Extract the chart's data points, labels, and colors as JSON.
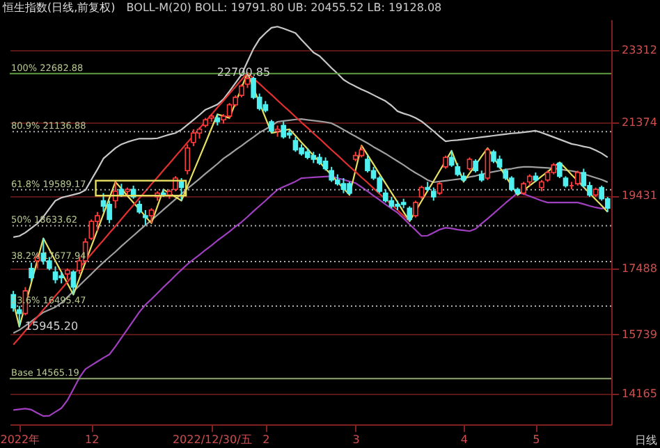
{
  "chart_data": {
    "type": "candlestick",
    "title": "恒生指数(日线,前复权)",
    "subtitle": "BOLL-M(20) BOLL: 19791.80 UB: 20455.52 LB: 19128.08",
    "categories": [
      null,
      "2022年",
      null,
      null,
      null,
      null,
      null,
      null,
      null,
      null,
      null,
      null,
      null,
      "12",
      null,
      null,
      null,
      null,
      null,
      null,
      null,
      null,
      null,
      null,
      null,
      null,
      null,
      null,
      null,
      null,
      null,
      null,
      null,
      "2022/12/30/五",
      null,
      null,
      null,
      null,
      null,
      null,
      null,
      null,
      "2",
      null,
      null,
      null,
      null,
      null,
      null,
      null,
      null,
      null,
      null,
      null,
      null,
      null,
      null,
      "3",
      null,
      null,
      null,
      null,
      null,
      null,
      null,
      null,
      null,
      null,
      null,
      null,
      null,
      null,
      null,
      null,
      null,
      "4",
      null,
      null,
      null,
      null,
      null,
      null,
      null,
      null,
      null,
      null,
      null,
      "5",
      null,
      null,
      null,
      null,
      null,
      null,
      null,
      null,
      null,
      null,
      null,
      null
    ],
    "ohlc": [
      [
        16800,
        16900,
        16350,
        16450
      ],
      [
        16400,
        16500,
        15945.2,
        16300
      ],
      [
        16300,
        17000,
        16250,
        16900
      ],
      [
        17500,
        17650,
        17150,
        17250
      ],
      [
        17700,
        17900,
        17500,
        17800
      ],
      [
        17900,
        18300,
        17600,
        17700
      ],
      [
        17700,
        17800,
        17450,
        17500
      ],
      [
        17400,
        17550,
        17100,
        17200
      ],
      [
        17300,
        17400,
        17100,
        17250
      ],
      [
        17350,
        17500,
        17200,
        17450
      ],
      [
        17400,
        17450,
        16800,
        17000
      ],
      [
        17450,
        17800,
        17350,
        17700
      ],
      [
        17700,
        18300,
        17650,
        18200
      ],
      [
        18300,
        18800,
        18250,
        18750
      ],
      [
        18750,
        19000,
        18500,
        18900
      ],
      [
        19300,
        19500,
        19000,
        19150
      ],
      [
        19200,
        19300,
        18700,
        18800
      ],
      [
        19300,
        19800,
        19100,
        19550
      ],
      [
        19600,
        19750,
        19400,
        19450
      ],
      [
        19550,
        19650,
        19450,
        19600
      ],
      [
        19600,
        19700,
        19350,
        19400
      ],
      [
        19200,
        19300,
        18950,
        19000
      ],
      [
        18900,
        19050,
        18650,
        18850
      ],
      [
        18900,
        19100,
        18700,
        19050
      ],
      [
        19400,
        19550,
        19300,
        19500
      ],
      [
        19500,
        19600,
        19400,
        19450
      ],
      [
        19450,
        19600,
        19350,
        19550
      ],
      [
        19600,
        19950,
        19550,
        19900
      ],
      [
        19800,
        19900,
        19300,
        19650
      ],
      [
        20100,
        20800,
        20000,
        20700
      ],
      [
        20850,
        21200,
        20750,
        21100
      ],
      [
        21100,
        21250,
        20950,
        21200
      ],
      [
        21300,
        21500,
        21250,
        21450
      ],
      [
        21500,
        21600,
        21400,
        21550
      ],
      [
        21500,
        21600,
        21300,
        21400
      ],
      [
        21450,
        21600,
        21350,
        21550
      ],
      [
        21550,
        21900,
        21500,
        21850
      ],
      [
        21850,
        22100,
        21800,
        22050
      ],
      [
        22100,
        22400,
        22050,
        22350
      ],
      [
        22400,
        22700.85,
        22300,
        22550
      ],
      [
        22550,
        22600,
        22000,
        22050
      ],
      [
        22050,
        22150,
        21700,
        21750
      ],
      [
        21850,
        21950,
        21650,
        21700
      ],
      [
        21400,
        21450,
        21100,
        21150
      ],
      [
        21150,
        21300,
        21000,
        21200
      ],
      [
        21300,
        21400,
        20950,
        21000
      ],
      [
        21100,
        21200,
        20950,
        21050
      ],
      [
        20900,
        21000,
        20600,
        20650
      ],
      [
        20700,
        20800,
        20500,
        20550
      ],
      [
        20600,
        20700,
        20400,
        20450
      ],
      [
        20500,
        20600,
        20300,
        20400
      ],
      [
        20450,
        20550,
        20250,
        20300
      ],
      [
        20350,
        20450,
        20100,
        20150
      ],
      [
        20100,
        20200,
        19800,
        19850
      ],
      [
        19850,
        20000,
        19700,
        19750
      ],
      [
        19750,
        19900,
        19500,
        19600
      ],
      [
        19750,
        19800,
        19450,
        19500
      ],
      [
        20400,
        20600,
        20350,
        20500
      ],
      [
        20500,
        20770,
        20450,
        20650
      ],
      [
        20400,
        20500,
        20050,
        20100
      ],
      [
        20100,
        20200,
        19850,
        19900
      ],
      [
        19900,
        19950,
        19500,
        19550
      ],
      [
        19500,
        19600,
        19250,
        19300
      ],
      [
        19300,
        19400,
        19100,
        19150
      ],
      [
        19200,
        19300,
        19050,
        19150
      ],
      [
        19250,
        19350,
        19100,
        19200
      ],
      [
        19100,
        19150,
        18750,
        18800
      ],
      [
        18900,
        19300,
        18850,
        19250
      ],
      [
        19400,
        19700,
        19350,
        19650
      ],
      [
        19650,
        19800,
        19550,
        19600
      ],
      [
        19550,
        19650,
        19300,
        19400
      ],
      [
        19500,
        19800,
        19450,
        19750
      ],
      [
        20200,
        20500,
        20150,
        20450
      ],
      [
        20450,
        20630,
        20200,
        20250
      ],
      [
        20200,
        20300,
        19950,
        20000
      ],
      [
        19950,
        20050,
        19800,
        19850
      ],
      [
        20150,
        20450,
        20100,
        20400
      ],
      [
        20350,
        20400,
        20050,
        20100
      ],
      [
        20000,
        20100,
        19800,
        19850
      ],
      [
        19900,
        20700,
        19850,
        20650
      ],
      [
        20600,
        20650,
        20300,
        20350
      ],
      [
        20400,
        20500,
        20150,
        20200
      ],
      [
        20100,
        20150,
        19850,
        19900
      ],
      [
        19900,
        19950,
        19550,
        19600
      ],
      [
        19600,
        19650,
        19450,
        19500
      ],
      [
        19500,
        19800,
        19450,
        19750
      ],
      [
        19800,
        20000,
        19700,
        19950
      ],
      [
        19950,
        20050,
        19800,
        19850
      ],
      [
        19650,
        19850,
        19550,
        19800
      ],
      [
        19850,
        20100,
        19800,
        20050
      ],
      [
        20050,
        20300,
        20000,
        20250
      ],
      [
        20300,
        20320,
        19900,
        19950
      ],
      [
        19900,
        19950,
        19650,
        19700
      ],
      [
        19700,
        19800,
        19600,
        19700
      ],
      [
        19750,
        20100,
        19700,
        20050
      ],
      [
        20050,
        20150,
        19650,
        19700
      ],
      [
        19700,
        19800,
        19400,
        19450
      ],
      [
        19450,
        19650,
        19400,
        19600
      ],
      [
        19650,
        19700,
        19300,
        19350
      ],
      [
        19350,
        19400,
        19000,
        19100
      ]
    ],
    "series": [
      {
        "type": "line",
        "color": "#c8c8c8",
        "values": [
          18330,
          18360,
          18450,
          18570,
          18690,
          18870,
          19090,
          19300,
          19380,
          19420,
          19460,
          19500,
          19580,
          19860,
          20130,
          20420,
          20560,
          20700,
          20800,
          20860,
          20910,
          20950,
          20950,
          20950,
          20960,
          21010,
          21060,
          21100,
          21190,
          21320,
          21450,
          21580,
          21720,
          21790,
          21860,
          22000,
          22210,
          22430,
          22650,
          23000,
          23340,
          23600,
          23760,
          23900,
          23930,
          23880,
          23820,
          23760,
          23580,
          23410,
          23240,
          23150,
          22990,
          22830,
          22680,
          22520,
          22420,
          22340,
          22260,
          22190,
          22110,
          22030,
          21950,
          21830,
          21680,
          21620,
          21570,
          21500,
          21410,
          21280,
          21150,
          21010,
          20880,
          20900,
          20910,
          20930,
          20950,
          20970,
          20990,
          21010,
          21030,
          21050,
          21070,
          21090,
          21100,
          21120,
          21140,
          21160,
          21110,
          21050,
          20990,
          20930,
          20870,
          20810,
          20780,
          20740,
          20710,
          20640,
          20560,
          20455
        ]
      },
      {
        "type": "line",
        "color": "#a0a0a0",
        "values": [
          15780,
          15860,
          15970,
          16090,
          16210,
          16330,
          16400,
          16470,
          16580,
          16730,
          16890,
          17040,
          17200,
          17350,
          17510,
          17660,
          17800,
          17940,
          18090,
          18230,
          18370,
          18510,
          18650,
          18780,
          18920,
          19060,
          19200,
          19340,
          19480,
          19620,
          19750,
          19880,
          20020,
          20150,
          20280,
          20420,
          20530,
          20650,
          20760,
          20880,
          20990,
          21110,
          21200,
          21290,
          21400,
          21420,
          21440,
          21460,
          21470,
          21450,
          21430,
          21410,
          21390,
          21360,
          21280,
          21190,
          21100,
          21010,
          20920,
          20830,
          20730,
          20640,
          20550,
          20450,
          20350,
          20250,
          20140,
          20040,
          19950,
          19850,
          19790,
          19810,
          19830,
          19850,
          19870,
          19890,
          19930,
          19960,
          20000,
          20040,
          20070,
          20100,
          20130,
          20150,
          20180,
          20200,
          20200,
          20190,
          20180,
          20170,
          20160,
          20140,
          20110,
          20090,
          20060,
          20010,
          19960,
          19910,
          19860,
          19792
        ]
      },
      {
        "type": "line",
        "color": "#a040c0",
        "values": [
          13730,
          13750,
          13770,
          13740,
          13650,
          13570,
          13580,
          13680,
          13780,
          13990,
          14290,
          14590,
          14820,
          14920,
          15020,
          15120,
          15210,
          15420,
          15650,
          15880,
          16110,
          16340,
          16530,
          16680,
          16840,
          17000,
          17150,
          17310,
          17460,
          17610,
          17740,
          17860,
          17990,
          18110,
          18240,
          18360,
          18480,
          18610,
          18730,
          18870,
          19020,
          19160,
          19300,
          19450,
          19590,
          19670,
          19740,
          19810,
          19900,
          19910,
          19920,
          19930,
          19940,
          19950,
          19900,
          19860,
          19810,
          19770,
          19660,
          19550,
          19430,
          19320,
          19200,
          19090,
          18980,
          18830,
          18670,
          18520,
          18360,
          18370,
          18450,
          18530,
          18580,
          18560,
          18530,
          18510,
          18490,
          18550,
          18690,
          18820,
          18960,
          19100,
          19240,
          19370,
          19510,
          19480,
          19420,
          19360,
          19300,
          19250,
          19250,
          19250,
          19250,
          19250,
          19250,
          19210,
          19160,
          19120,
          19090,
          19128
        ]
      },
      {
        "type": "line",
        "color": "#e8e060",
        "values": [
          16600,
          15945.2,
          16530,
          17120,
          17710,
          18300,
          18000,
          17700,
          17400,
          17100,
          16800,
          17230,
          17660,
          18090,
          18510,
          18940,
          19370,
          19800,
          19620,
          19430,
          19250,
          19070,
          18880,
          18700,
          19150,
          19600,
          19500,
          19400,
          19300,
          19680,
          20070,
          20450,
          20830,
          21220,
          21600,
          21550,
          21500,
          21900,
          22300,
          22700.85,
          22300,
          21900,
          21500,
          21100,
          21130,
          21170,
          21200,
          21030,
          20850,
          20680,
          20500,
          20330,
          20150,
          19980,
          19800,
          19630,
          19450,
          20110,
          20770,
          20520,
          20270,
          20010,
          19760,
          19510,
          19260,
          19000,
          18750,
          19020,
          19290,
          19560,
          19820,
          20090,
          20360,
          20630,
          20220,
          19800,
          20030,
          20250,
          20480,
          20700,
          20450,
          20200,
          19950,
          19700,
          19450,
          19570,
          19700,
          19820,
          19950,
          20070,
          20200,
          20320,
          20160,
          19990,
          19830,
          19660,
          19500,
          19330,
          19170,
          19000
        ]
      },
      {
        "type": "line",
        "color": "#e03030",
        "values": [
          15470,
          15650,
          15840,
          16030,
          16210,
          16400,
          16580,
          16770,
          16950,
          17140,
          17330,
          17510,
          17700,
          17880,
          18070,
          18250,
          18440,
          18620,
          18810,
          19000,
          19180,
          19370,
          19550,
          19740,
          19920,
          20110,
          20290,
          20480,
          20660,
          20850,
          21030,
          21220,
          21410,
          21590,
          21780,
          21960,
          22150,
          22330,
          22520,
          22700.85,
          null,
          null,
          null,
          null,
          null,
          null,
          null,
          null,
          null,
          null,
          null,
          null,
          null,
          null,
          null,
          null,
          null,
          null,
          null,
          null,
          null,
          null,
          null,
          null,
          null,
          null,
          null,
          null,
          null,
          null,
          null,
          null,
          null,
          null,
          null,
          null,
          null,
          null,
          null,
          null,
          null,
          null,
          null,
          null,
          null,
          null,
          null,
          null,
          null,
          null,
          null,
          null,
          null,
          null,
          null,
          null,
          null,
          null,
          null,
          null
        ]
      },
      {
        "type": "line",
        "color": "#e03030",
        "values": [
          null,
          null,
          null,
          null,
          null,
          null,
          null,
          null,
          null,
          null,
          null,
          null,
          null,
          null,
          null,
          null,
          null,
          null,
          null,
          null,
          null,
          null,
          null,
          null,
          null,
          null,
          null,
          null,
          null,
          null,
          null,
          null,
          null,
          null,
          null,
          null,
          null,
          null,
          null,
          22700.85,
          22550,
          22410,
          22260,
          22120,
          21970,
          21820,
          21680,
          21530,
          21380,
          21240,
          21090,
          20950,
          20800,
          20650,
          20510,
          20360,
          20210,
          20070,
          19920,
          19780,
          19630,
          19480,
          19340,
          19190,
          19050,
          18900,
          18750,
          null,
          null,
          null,
          null,
          null,
          null,
          null,
          null,
          null,
          null,
          null,
          null,
          null,
          null,
          null,
          null,
          null,
          null,
          null,
          null,
          null,
          null,
          null,
          null,
          null,
          null,
          null,
          null,
          null,
          null,
          null,
          null,
          null
        ]
      }
    ],
    "ylim": [
      13350,
      24120
    ],
    "yticks": [
      23312,
      21374,
      19431,
      17488,
      15739,
      14165
    ],
    "grid": "y",
    "ref_lines": [
      {
        "axis": "y",
        "value": 22682.88,
        "label": "100% 22682.88",
        "color": "#60a040",
        "line_style": "solid"
      },
      {
        "axis": "y",
        "value": 21136.88,
        "label": "80.9% 21136.88",
        "color": "#b0b0b0",
        "line_style": "dotted"
      },
      {
        "axis": "y",
        "value": 19589.17,
        "label": "61.8% 19589.17",
        "color": "#b0b0b0",
        "line_style": "dotted"
      },
      {
        "axis": "y",
        "value": 18633.62,
        "label": "50% 18633.62",
        "color": "#b0b0b0",
        "line_style": "dotted"
      },
      {
        "axis": "y",
        "value": 17677.94,
        "label": "38.2% 17677.94",
        "color": "#b0b0b0",
        "line_style": "dotted"
      },
      {
        "axis": "y",
        "value": 16495.47,
        "label": "23.6% 16495.47",
        "color": "#b0b0b0",
        "line_style": "dotted"
      },
      {
        "axis": "y",
        "value": 14565.19,
        "label": "Base 14565.19",
        "color": "#90a870",
        "line_style": "solid"
      }
    ],
    "annotations": [
      {
        "text": "22700.85",
        "x": "2022/12/30/五",
        "y": 22700.85
      },
      {
        "text": "15945.20",
        "x": "2022年",
        "y": 15945.2
      },
      "日线"
    ]
  }
}
